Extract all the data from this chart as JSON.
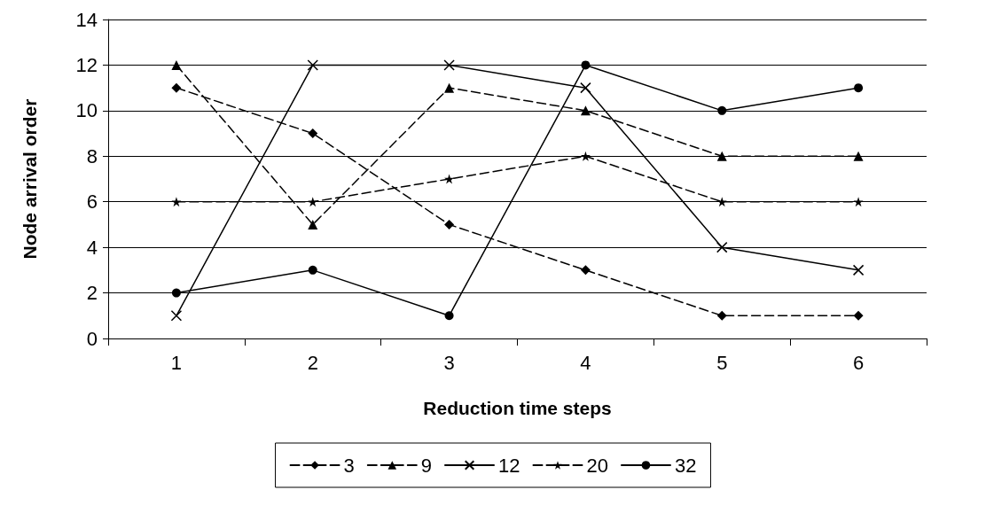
{
  "chart_data": {
    "type": "line",
    "xlabel": "Reduction time steps",
    "ylabel": "Node arrival order",
    "categories": [
      "1",
      "2",
      "3",
      "4",
      "5",
      "6"
    ],
    "series": [
      {
        "name": "3",
        "color": "#000000",
        "marker": "diamond",
        "line_style": "dashed",
        "values": [
          11,
          9,
          5,
          3,
          1,
          1
        ]
      },
      {
        "name": "9",
        "color": "#000000",
        "marker": "triangle",
        "line_style": "dashed",
        "values": [
          12,
          5,
          11,
          10,
          8,
          8
        ]
      },
      {
        "name": "12",
        "color": "#000000",
        "marker": "cross",
        "line_style": "solid",
        "values": [
          1,
          12,
          12,
          11,
          4,
          3
        ]
      },
      {
        "name": "20",
        "color": "#000000",
        "marker": "star",
        "line_style": "dashed",
        "values": [
          6,
          6,
          7,
          8,
          6,
          6
        ]
      },
      {
        "name": "32",
        "color": "#000000",
        "marker": "circle",
        "line_style": "solid",
        "values": [
          2,
          3,
          1,
          12,
          10,
          11
        ]
      }
    ],
    "ylim": [
      0,
      14
    ],
    "yticks": [
      0,
      2,
      4,
      6,
      8,
      10,
      12,
      14
    ],
    "grid": "y",
    "legend": "bottom"
  }
}
